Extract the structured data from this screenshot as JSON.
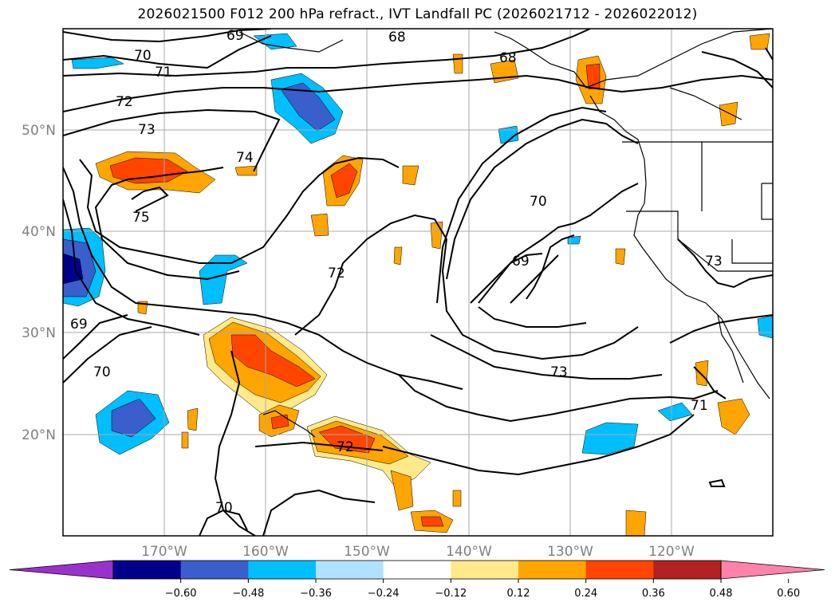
{
  "title": "2026021500 F012 200 hPa refract., IVT Landfall PC (2026021712 - 2026022012)",
  "map": {
    "lon_range": [
      -180,
      -110
    ],
    "lat_range": [
      10,
      60
    ],
    "lat_labels": [
      "50°N",
      "40°N",
      "30°N",
      "20°N"
    ],
    "lon_labels": [
      "170°W",
      "160°W",
      "150°W",
      "140°W",
      "130°W",
      "120°W"
    ],
    "contour_labels": [
      "69",
      "68",
      "70",
      "71",
      "72",
      "73",
      "74",
      "75",
      "72",
      "70",
      "69",
      "73",
      "71",
      "70",
      "72",
      "70",
      "69",
      "68",
      "73"
    ]
  },
  "colorbar": {
    "ticks": [
      "−0.60",
      "−0.48",
      "−0.36",
      "−0.24",
      "−0.12",
      "0.12",
      "0.24",
      "0.36",
      "0.48",
      "0.60"
    ],
    "colors": [
      "#9932cc",
      "#00008b",
      "#3a5fcd",
      "#00bfff",
      "#b0e2ff",
      "#ffffff",
      "#ffe98a",
      "#ffa500",
      "#ff4500",
      "#b22222",
      "#ff82ab"
    ]
  }
}
